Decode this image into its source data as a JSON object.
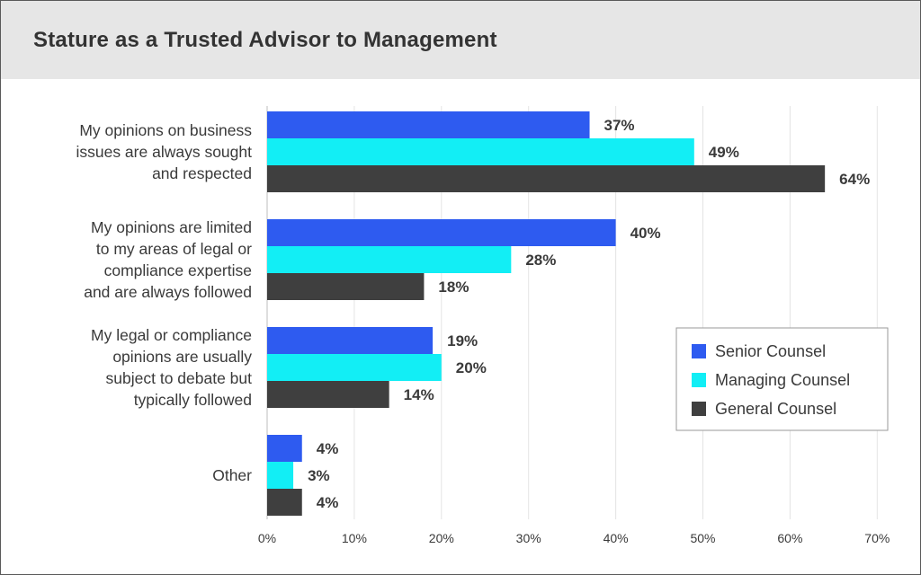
{
  "chart_data": {
    "type": "bar",
    "orientation": "horizontal",
    "title": "Stature as a Trusted Advisor to Management",
    "categories": [
      "My opinions on business issues are always sought and respected",
      "My opinions are limited to my areas of legal or compliance expertise and are always followed",
      "My legal or compliance opinions are usually subject to debate but typically followed",
      "Other"
    ],
    "category_lines": [
      [
        "My opinions on business",
        "issues are always sought",
        "and respected"
      ],
      [
        "My opinions are limited",
        "to my areas of legal or",
        "compliance expertise",
        "and are always followed"
      ],
      [
        "My legal or compliance",
        "opinions are usually",
        "subject to debate but",
        "typically followed"
      ],
      [
        "Other"
      ]
    ],
    "series": [
      {
        "name": "Senior Counsel",
        "color": "#2e5bf0",
        "values": [
          37,
          40,
          19,
          4
        ]
      },
      {
        "name": "Managing Counsel",
        "color": "#12eef5",
        "values": [
          49,
          28,
          20,
          3
        ]
      },
      {
        "name": "General Counsel",
        "color": "#3f3f3f",
        "values": [
          64,
          18,
          14,
          4
        ]
      }
    ],
    "value_suffix": "%",
    "xlim": [
      0,
      70
    ],
    "xticks": [
      0,
      10,
      20,
      30,
      40,
      50,
      60,
      70
    ],
    "xtick_labels": [
      "0%",
      "10%",
      "20%",
      "30%",
      "40%",
      "50%",
      "60%",
      "70%"
    ],
    "grid": true,
    "legend_position": "right"
  }
}
